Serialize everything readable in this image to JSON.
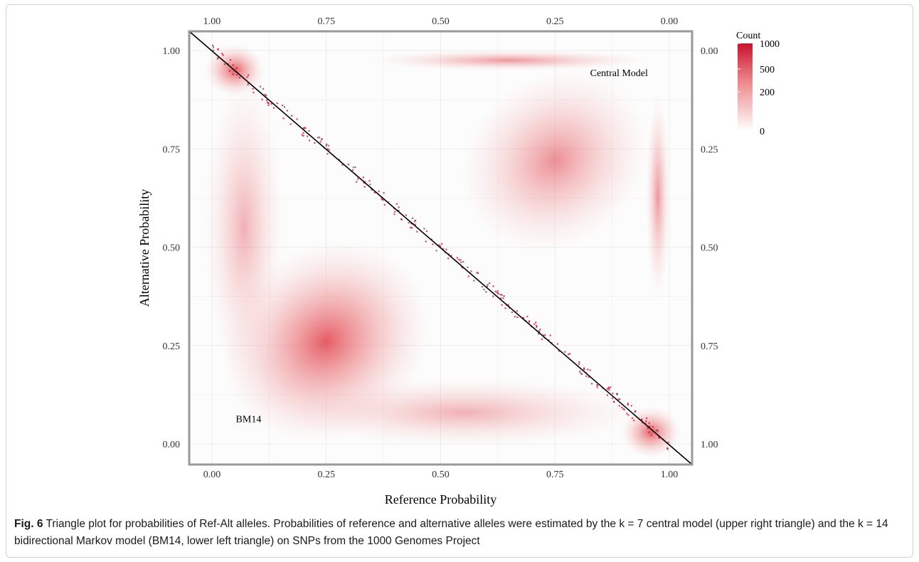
{
  "figure": {
    "caption_label": "Fig. 6",
    "caption_text": "Triangle plot for probabilities of Ref-Alt alleles. Probabilities of reference and alternative alleles were estimated by the k = 7 central model (upper right triangle) and the k = 14 bidirectional Markov model (BM14, lower left triangle) on SNPs from the 1000 Genomes Project"
  },
  "chart_data": {
    "type": "heatmap",
    "xlabel": "Reference Probability",
    "ylabel": "Alternative Probability",
    "xlim": [
      0,
      1
    ],
    "ylim": [
      0,
      1
    ],
    "x_ticks": [
      "0.00",
      "0.25",
      "0.50",
      "0.75",
      "1.00"
    ],
    "y_ticks": [
      "0.00",
      "0.25",
      "0.50",
      "0.75",
      "1.00"
    ],
    "top_ticks": [
      "1.00",
      "0.75",
      "0.50",
      "0.25",
      "0.00"
    ],
    "right_ticks": [
      "0.00",
      "0.25",
      "0.50",
      "0.75",
      "1.00"
    ],
    "grid": true,
    "diagonal_line": {
      "from": [
        0,
        1
      ],
      "to": [
        1,
        0
      ]
    },
    "annotations": [
      {
        "text": "Central Model",
        "x": 0.89,
        "y": 0.935
      },
      {
        "text": "BM14",
        "x": 0.08,
        "y": 0.055
      }
    ],
    "legend": {
      "title": "Count",
      "position": "right",
      "ticks": [
        {
          "label": "1000",
          "value": 1000
        },
        {
          "label": "500",
          "value": 500
        },
        {
          "label": "200",
          "value": 200
        },
        {
          "label": "0",
          "value": 0
        }
      ],
      "color_low": "#ffffff",
      "color_high": "#c8102e"
    },
    "density_regions": [
      {
        "name": "upper-right main cluster",
        "x": 0.75,
        "y": 0.72,
        "sx": 0.1,
        "sy": 0.1,
        "count": 430
      },
      {
        "name": "upper-right top band",
        "x": 0.65,
        "y": 0.975,
        "sx": 0.14,
        "sy": 0.012,
        "count": 380
      },
      {
        "name": "upper-right right band",
        "x": 0.975,
        "y": 0.63,
        "sx": 0.012,
        "sy": 0.12,
        "count": 380
      },
      {
        "name": "lower-left main cluster",
        "x": 0.25,
        "y": 0.26,
        "sx": 0.11,
        "sy": 0.11,
        "count": 880
      },
      {
        "name": "lower-left bottom tail",
        "x": 0.55,
        "y": 0.08,
        "sx": 0.18,
        "sy": 0.04,
        "count": 200
      },
      {
        "name": "lower-left left tail",
        "x": 0.07,
        "y": 0.55,
        "sx": 0.04,
        "sy": 0.18,
        "count": 200
      },
      {
        "name": "bottom-right corner",
        "x": 0.96,
        "y": 0.03,
        "sx": 0.03,
        "sy": 0.03,
        "count": 750
      },
      {
        "name": "top-left corner",
        "x": 0.05,
        "y": 0.95,
        "sx": 0.03,
        "sy": 0.03,
        "count": 900
      }
    ],
    "colors": {
      "panel_border": "#999999",
      "grid": "#ececec",
      "diagonal": "#000000",
      "scatter": "#c8102e"
    }
  }
}
